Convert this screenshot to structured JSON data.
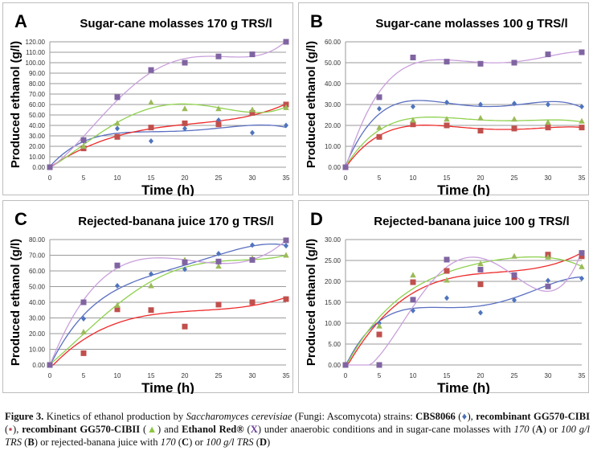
{
  "colors": {
    "blue": "#4f74bd",
    "red": "#c0504d",
    "green": "#9bbb59",
    "purple": "#8064a2",
    "trend_red": "#ee2a2a",
    "trend_green": "#8fd14f",
    "trend_purple": "#c9a0dc",
    "trend_blue": "#5a6fc0",
    "grid": "#9a9a9a"
  },
  "chart_data": [
    {
      "type": "scatter",
      "panel_letter": "A",
      "title": "Sugar-cane molasses 170 g TRS/l",
      "xlabel": "Time (h)",
      "ylabel": "Produced ethanol (g/l)",
      "xlim": [
        0,
        35
      ],
      "ylim": [
        0,
        120
      ],
      "ystep": 10,
      "xticks": [
        0,
        5,
        10,
        15,
        20,
        25,
        30,
        35
      ],
      "grid": true,
      "trendline": "polynomial",
      "x": [
        0,
        5,
        10,
        15,
        20,
        25,
        30,
        35
      ],
      "series": [
        {
          "key": "blue",
          "marker": "diamond",
          "values": [
            0,
            25,
            37,
            25,
            37,
            45,
            33,
            40
          ]
        },
        {
          "key": "red",
          "marker": "square",
          "values": [
            0,
            18,
            29,
            38,
            42,
            41,
            52,
            60
          ]
        },
        {
          "key": "green",
          "marker": "triangle",
          "values": [
            0,
            20,
            42,
            62,
            56,
            56,
            55,
            57
          ]
        },
        {
          "key": "purple",
          "marker": "square",
          "values": [
            0,
            26,
            67,
            93,
            100,
            106,
            108,
            120
          ]
        }
      ]
    },
    {
      "type": "scatter",
      "panel_letter": "B",
      "title": "Sugar-cane molasses 100 g TRS/l",
      "xlabel": "Time (h)",
      "ylabel": "Produced ethanol (g/l)",
      "xlim": [
        0,
        35
      ],
      "ylim": [
        0,
        60
      ],
      "ystep": 10,
      "xticks": [
        0,
        5,
        10,
        15,
        20,
        25,
        30,
        35
      ],
      "grid": true,
      "trendline": "polynomial",
      "x": [
        0,
        5,
        10,
        15,
        20,
        25,
        30,
        35
      ],
      "series": [
        {
          "key": "blue",
          "marker": "diamond",
          "values": [
            0,
            28,
            29,
            31,
            30,
            30.5,
            30,
            29
          ]
        },
        {
          "key": "red",
          "marker": "square",
          "values": [
            0,
            14.5,
            20.5,
            20,
            17.5,
            18.5,
            19,
            19
          ]
        },
        {
          "key": "green",
          "marker": "triangle",
          "values": [
            0,
            19,
            22.5,
            23,
            23.5,
            23,
            21.5,
            22
          ]
        },
        {
          "key": "purple",
          "marker": "square",
          "values": [
            0,
            33.5,
            52.5,
            50.5,
            49.5,
            50,
            54,
            55
          ]
        }
      ]
    },
    {
      "type": "scatter",
      "panel_letter": "C",
      "title": "Rejected-banana juice 170 g TRS/l",
      "xlabel": "Time (h)",
      "ylabel": "Produced ethanol (g/l)",
      "xlim": [
        0,
        35
      ],
      "ylim": [
        0,
        80
      ],
      "ystep": 10,
      "xticks": [
        0,
        5,
        10,
        15,
        20,
        25,
        30,
        35
      ],
      "grid": true,
      "trendline": "polynomial",
      "x": [
        0,
        5,
        10,
        15,
        20,
        25,
        30,
        35
      ],
      "series": [
        {
          "key": "blue",
          "marker": "diamond",
          "values": [
            0,
            29.5,
            50.5,
            58,
            61,
            71,
            76.5,
            76
          ]
        },
        {
          "key": "red",
          "marker": "square",
          "values": [
            0,
            7.5,
            35.5,
            35,
            24.5,
            38.5,
            40,
            42
          ]
        },
        {
          "key": "green",
          "marker": "triangle",
          "values": [
            0,
            21,
            38,
            50.5,
            67,
            63,
            68,
            70
          ]
        },
        {
          "key": "purple",
          "marker": "square",
          "values": [
            0,
            40,
            63.5,
            null,
            65.5,
            66,
            67,
            79.5
          ]
        }
      ]
    },
    {
      "type": "scatter",
      "panel_letter": "D",
      "title": "Rejected-banana juice 100 g TRS/l",
      "xlabel": "Time (h)",
      "ylabel": "Produced ethanol (g/l)",
      "xlim": [
        0,
        35
      ],
      "ylim": [
        0,
        30
      ],
      "ystep": 5,
      "xticks": [
        0,
        5,
        10,
        15,
        20,
        25,
        30,
        35
      ],
      "grid": true,
      "trendline": "polynomial",
      "x": [
        0,
        5,
        10,
        15,
        20,
        25,
        30,
        35
      ],
      "series": [
        {
          "key": "blue",
          "marker": "diamond",
          "values": [
            0,
            10,
            13,
            16,
            12.5,
            15.5,
            20.2,
            20.7
          ]
        },
        {
          "key": "red",
          "marker": "square",
          "values": [
            0,
            7.3,
            19.8,
            22.5,
            19.3,
            21,
            26.4,
            26
          ]
        },
        {
          "key": "green",
          "marker": "triangle",
          "values": [
            0,
            9.3,
            21.5,
            20.3,
            24.2,
            26,
            25.8,
            23.5
          ]
        },
        {
          "key": "purple",
          "marker": "square",
          "values": [
            0,
            0,
            15.6,
            25.2,
            22.8,
            21.5,
            18.8,
            26.8
          ]
        }
      ]
    }
  ],
  "caption": {
    "fig_label": "Figure 3.",
    "t1": " Kinetics of ethanol production by ",
    "species": "Saccharomyces cerevisiae",
    "t2": " (Fungi: Ascomycota) strains: ",
    "s1": "CBS8066",
    "sym1": "♦",
    "s2": "recombinant GG570-CIBI",
    "sym2": "▪",
    "s3": "recombinant GG570-CIBII",
    "sym3": "▲",
    "t3": " and ",
    "s4": "Ethanol Red®",
    "sym4": "X",
    "t4": " under anaerobic conditions and in sugar-cane molasses with ",
    "v1": "170",
    "l1": "A",
    "t5": " or ",
    "v2": "100 g/l TRS",
    "l2": "B",
    "t6": " or rejected-banana juice with ",
    "v3": "170",
    "l3": "C",
    "v4": "100 g/l TRS",
    "l4": "D"
  }
}
